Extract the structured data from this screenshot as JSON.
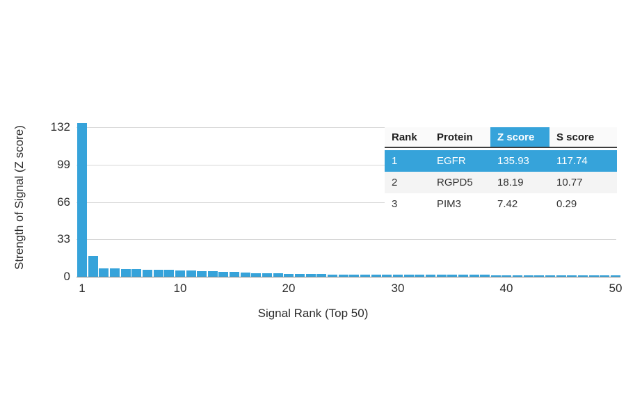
{
  "figure": {
    "background": "#ffffff",
    "accent_blue": "#36a3da"
  },
  "chart_data": {
    "type": "bar",
    "title": "",
    "xlabel": "Signal Rank (Top 50)",
    "ylabel": "Strength of Signal (Z score)",
    "x_range": [
      1,
      50
    ],
    "x_tick_values": [
      1,
      10,
      20,
      30,
      40,
      50
    ],
    "y_tick_values": [
      0,
      33,
      66,
      99,
      132
    ],
    "ylim": [
      0,
      136
    ],
    "grid": "horizontal",
    "legend": "none",
    "bar_color": "#36a3da",
    "values": [
      135.93,
      18.19,
      7.42,
      7.1,
      6.9,
      6.6,
      6.4,
      6.2,
      6.0,
      5.8,
      5.5,
      5.2,
      4.8,
      4.4,
      4.0,
      3.6,
      3.3,
      3.0,
      2.8,
      2.6,
      2.4,
      2.3,
      2.2,
      2.1,
      2.05,
      2.0,
      1.95,
      1.9,
      1.85,
      1.8,
      1.75,
      1.72,
      1.7,
      1.67,
      1.64,
      1.6,
      1.57,
      1.54,
      1.5,
      1.48,
      1.45,
      1.42,
      1.4,
      1.38,
      1.35,
      1.32,
      1.3,
      1.28,
      1.25,
      1.22
    ]
  },
  "table": {
    "columns": [
      "Rank",
      "Protein",
      "Z score",
      "S score"
    ],
    "highlighted_column": "Z score",
    "highlight_bg": "#36a3da",
    "alt_row_bg": "#f4f4f4",
    "rows": [
      {
        "cells": [
          "1",
          "EGFR",
          "135.93",
          "117.74"
        ],
        "highlighted": true
      },
      {
        "cells": [
          "2",
          "RGPD5",
          "18.19",
          "10.77"
        ],
        "highlighted": false
      },
      {
        "cells": [
          "3",
          "PIM3",
          "7.42",
          "0.29"
        ],
        "highlighted": false
      }
    ]
  }
}
